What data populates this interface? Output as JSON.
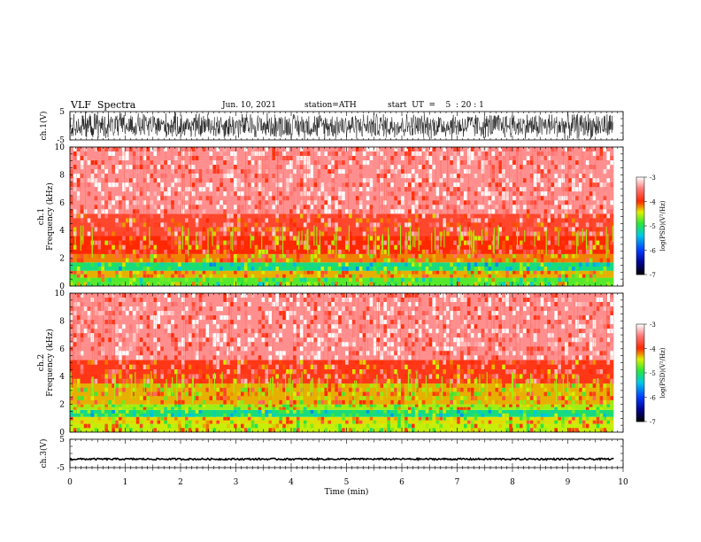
{
  "header": {
    "title": "VLF  Spectra",
    "date": "Jun. 10, 2021",
    "station": "station=ATH",
    "start": "start  UT  =    5  : 20 : 1"
  },
  "chart_data": [
    {
      "type": "line",
      "panel": "ch1",
      "ylabel": "ch.1(V)",
      "ylim": [
        -5,
        5
      ],
      "yticks": [
        "5",
        "-5"
      ],
      "amplitude": 5,
      "color": "#000000"
    },
    {
      "type": "heatmap",
      "panel": "spec1",
      "ylabel": [
        "ch.1",
        "Frequency  (kHz)"
      ],
      "ylim": [
        0,
        10
      ],
      "yticks": [
        "0",
        "2",
        "4",
        "6",
        "8",
        "10"
      ],
      "colorbar": {
        "label": "log(PSD)(V²/Hz)",
        "ticks": [
          "-3",
          "-4",
          "-5",
          "-6",
          "-7"
        ],
        "range": [
          -7,
          -3
        ]
      },
      "bands": [
        {
          "from": 0,
          "to": 0.6,
          "level": -4.8
        },
        {
          "from": 0.6,
          "to": 1.1,
          "level": -4.3
        },
        {
          "from": 1.1,
          "to": 1.7,
          "level": -5.1
        },
        {
          "from": 1.7,
          "to": 2.3,
          "level": -4.2
        },
        {
          "from": 2.3,
          "to": 3.6,
          "level": -4.0
        },
        {
          "from": 3.6,
          "to": 5.2,
          "level": -3.8
        },
        {
          "from": 5.2,
          "to": 10,
          "level": -3.4
        }
      ]
    },
    {
      "type": "heatmap",
      "panel": "spec2",
      "ylabel": [
        "ch.2",
        "Frequency  (kHz)"
      ],
      "ylim": [
        0,
        10
      ],
      "yticks": [
        "0",
        "2",
        "4",
        "6",
        "8",
        "10"
      ],
      "colorbar": {
        "label": "log(PSD)(V²/Hz)",
        "ticks": [
          "-3",
          "-4",
          "-5",
          "-6",
          "-7"
        ],
        "range": [
          -7,
          -3
        ]
      },
      "bands": [
        {
          "from": 0,
          "to": 0.6,
          "level": -4.5
        },
        {
          "from": 0.6,
          "to": 1.1,
          "level": -4.4
        },
        {
          "from": 1.1,
          "to": 1.6,
          "level": -5.1
        },
        {
          "from": 1.6,
          "to": 2.0,
          "level": -4.6
        },
        {
          "from": 2.0,
          "to": 3.5,
          "level": -4.3
        },
        {
          "from": 3.5,
          "to": 5.2,
          "level": -3.9
        },
        {
          "from": 5.2,
          "to": 10,
          "level": -3.4
        }
      ]
    },
    {
      "type": "line",
      "panel": "ch3",
      "ylabel": "ch.3(V)",
      "ylim": [
        -5,
        5
      ],
      "yticks": [
        "5",
        "-5"
      ],
      "baseline": -2,
      "amplitude": 0.3,
      "color": "#000000"
    }
  ],
  "xaxis": {
    "label": "Time  (min)",
    "ticks": [
      "0",
      "1",
      "2",
      "3",
      "4",
      "5",
      "6",
      "7",
      "8",
      "9",
      "10"
    ],
    "xlim": [
      0,
      10
    ],
    "data_end": 9.83
  }
}
